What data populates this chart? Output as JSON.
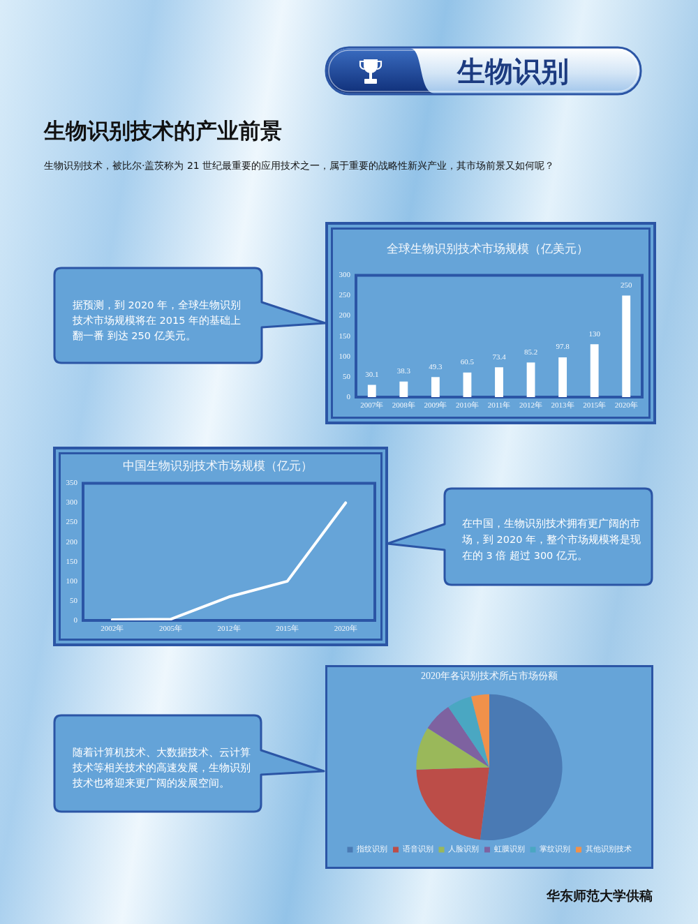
{
  "chart_data": [
    {
      "type": "other",
      "title": "生物识别技术的产业前景",
      "subtitle": "生物识别技术，被比尔·盖茨称为 21 世纪最重要的应用技术之一，属于重要的战略性新兴产业，其市场前景又如何呢？",
      "annotations": [
        "生物识别"
      ]
    },
    {
      "type": "bar",
      "title": "全球生物识别技术市场规模（亿美元）",
      "categories": [
        "2007年",
        "2008年",
        "2009年",
        "2010年",
        "2011年",
        "2012年",
        "2013年",
        "2015年",
        "2020年"
      ],
      "values": [
        30.1,
        38.3,
        49.3,
        60.5,
        73.4,
        85.2,
        97.8,
        130,
        250
      ],
      "color": "#ffffff",
      "ylim": [
        0,
        300
      ],
      "yticks": [
        0,
        50,
        100,
        150,
        200,
        250,
        300
      ],
      "data_labels": true,
      "annotations": [
        "据预测，到 2020 年，全球生物识别技术市场规模将在 2015 年的基础上翻一番 到达 250 亿美元。"
      ]
    },
    {
      "type": "line",
      "title": "中国生物识别技术市场规模（亿元）",
      "categories": [
        "2002年",
        "2005年",
        "2012年",
        "2015年",
        "2020年"
      ],
      "values": [
        2,
        3,
        60,
        100,
        300
      ],
      "color": "#ffffff",
      "ylim": [
        0,
        350
      ],
      "yticks": [
        0,
        50,
        100,
        150,
        200,
        250,
        300,
        350
      ],
      "marker": "none",
      "line_style": "solid",
      "annotations": [
        "在中国，生物识别技术拥有更广阔的市场，到 2020 年，整个市场规模将是现在的 3 倍 超过 300 亿元。"
      ]
    },
    {
      "type": "pie",
      "title": "2020年各识别技术所占市场份额",
      "categories": [
        "指纹识别",
        "语音识别",
        "人脸识别",
        "虹膜识别",
        "掌纹识别",
        "其他识别技术"
      ],
      "values": [
        52,
        22.5,
        9.5,
        6.5,
        5.5,
        4
      ],
      "colors": [
        "#4a7ab4",
        "#bc4d48",
        "#9ab85a",
        "#7e62a0",
        "#4aa7c2",
        "#f0914a"
      ],
      "legend": "bottom",
      "annotations": [
        "随着计算机技术、大数据技术、云计算技术等相关技术的高速发展，生物识别技术也将迎来更广阔的发展空间。",
        "华东师范大学供稿"
      ]
    }
  ]
}
